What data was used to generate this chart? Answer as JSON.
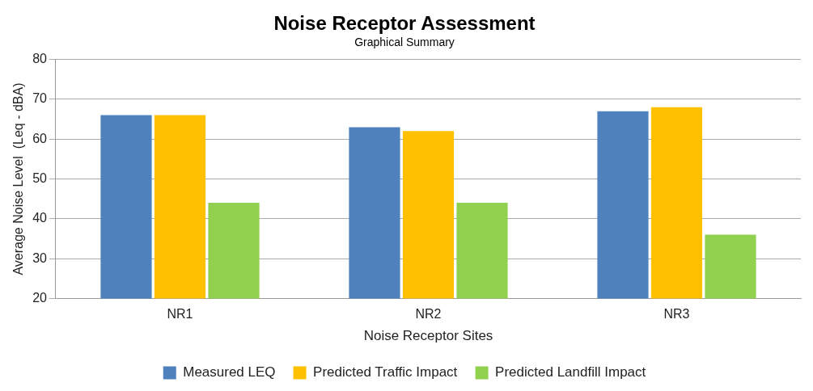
{
  "chart_data": {
    "type": "bar",
    "title": "Noise Receptor Assessment",
    "subtitle": "Graphical Summary",
    "xlabel": "Noise Receptor Sites",
    "ylabel": "Average Noise Level  (Leq - dBA)",
    "categories": [
      "NR1",
      "NR2",
      "NR3"
    ],
    "series": [
      {
        "name": "Measured LEQ",
        "color": "#4f81bd",
        "values": [
          66,
          63,
          67
        ]
      },
      {
        "name": "Predicted Traffic Impact",
        "color": "#ffc000",
        "values": [
          66,
          62,
          68
        ]
      },
      {
        "name": "Predicted Landfill Impact",
        "color": "#92d050",
        "values": [
          44,
          44,
          36
        ]
      }
    ],
    "ylim": [
      20,
      80
    ],
    "yticks": [
      20,
      30,
      40,
      50,
      60,
      70,
      80
    ],
    "grid": "y",
    "legend": "bottom"
  }
}
